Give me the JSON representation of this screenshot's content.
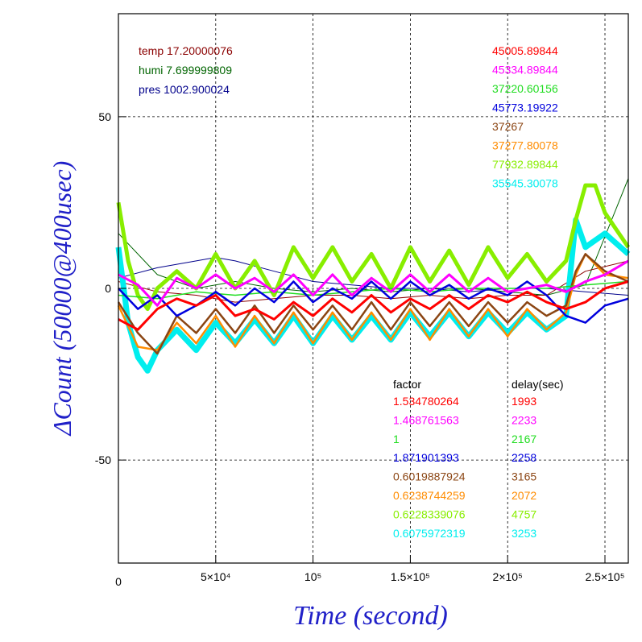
{
  "chart_data": {
    "type": "line",
    "xlabel": "Time (second)",
    "ylabel": "ΔCount (50000@400usec)",
    "xlim": [
      0,
      262000
    ],
    "ylim": [
      -80,
      80
    ],
    "grid": true,
    "x_ticks": [
      {
        "value": 0,
        "label": "0"
      },
      {
        "value": 50000,
        "label": "5×10⁴"
      },
      {
        "value": 100000,
        "label": "10⁵"
      },
      {
        "value": 150000,
        "label": "1.5×10⁵"
      },
      {
        "value": 200000,
        "label": "2×10⁵"
      },
      {
        "value": 250000,
        "label": "2.5×10⁵"
      }
    ],
    "y_ticks": [
      {
        "value": 50,
        "label": "50"
      },
      {
        "value": 0,
        "label": "0"
      },
      {
        "value": -50,
        "label": "-50"
      }
    ],
    "env_legend": [
      {
        "label": "temp 17.20000076",
        "color": "#8b0000"
      },
      {
        "label": "humi 7.699999809",
        "color": "#006400"
      },
      {
        "label": "pres 1002.900024",
        "color": "#00008b"
      }
    ],
    "table_headers": {
      "factor": "factor",
      "delay": "delay(sec)"
    },
    "series": [
      {
        "mean": "45005.89844",
        "factor": "1.534780264",
        "delay": "1993",
        "color": "#ff0000",
        "x": [
          0,
          10000,
          20000,
          30000,
          40000,
          50000,
          60000,
          70000,
          80000,
          90000,
          100000,
          110000,
          120000,
          130000,
          140000,
          150000,
          160000,
          170000,
          180000,
          190000,
          200000,
          210000,
          220000,
          230000,
          240000,
          250000,
          262000
        ],
        "y": [
          -9,
          -12,
          -6,
          -3,
          -5,
          -2,
          -8,
          -6,
          -9,
          -4,
          -8,
          -3,
          -7,
          -2,
          -7,
          -3,
          -6,
          -2,
          -6,
          -2,
          -4,
          -1,
          -4,
          -6,
          -4,
          0,
          2
        ]
      },
      {
        "mean": "45334.89844",
        "factor": "1.468761563",
        "delay": "2233",
        "color": "#ff00ff",
        "x": [
          0,
          10000,
          20000,
          30000,
          40000,
          50000,
          60000,
          70000,
          80000,
          90000,
          100000,
          110000,
          120000,
          130000,
          140000,
          150000,
          160000,
          170000,
          180000,
          190000,
          200000,
          210000,
          220000,
          230000,
          240000,
          250000,
          262000
        ],
        "y": [
          4,
          1,
          -5,
          3,
          0,
          4,
          0,
          3,
          -1,
          4,
          -2,
          4,
          -2,
          3,
          -1,
          4,
          -1,
          4,
          -1,
          3,
          -1,
          0,
          1,
          -1,
          2,
          4,
          8
        ]
      },
      {
        "mean": "37220.60156",
        "factor": "1",
        "delay": "2167",
        "color": "#22dd22",
        "x": [
          0,
          20000,
          40000,
          60000,
          80000,
          100000,
          120000,
          140000,
          160000,
          180000,
          200000,
          220000,
          240000,
          262000
        ],
        "y": [
          -2,
          -3,
          -1,
          -2,
          -1,
          -2,
          -1,
          0,
          -1,
          0,
          0,
          0,
          1,
          2
        ]
      },
      {
        "mean": "45773.19922",
        "factor": "1.871901393",
        "delay": "2258",
        "color": "#0000dd",
        "x": [
          0,
          10000,
          20000,
          30000,
          40000,
          50000,
          60000,
          70000,
          80000,
          90000,
          100000,
          110000,
          120000,
          130000,
          140000,
          150000,
          160000,
          170000,
          180000,
          190000,
          200000,
          210000,
          220000,
          230000,
          240000,
          250000,
          262000
        ],
        "y": [
          0,
          -6,
          -2,
          -8,
          -5,
          -1,
          -5,
          0,
          -4,
          2,
          -4,
          0,
          -3,
          2,
          -3,
          2,
          -2,
          1,
          -3,
          0,
          -2,
          2,
          -2,
          -8,
          -10,
          -5,
          -3
        ]
      },
      {
        "mean": "37267",
        "factor": "0.6019887924",
        "delay": "3165",
        "color": "#8b4513",
        "x": [
          0,
          10000,
          20000,
          30000,
          40000,
          50000,
          60000,
          70000,
          80000,
          90000,
          100000,
          110000,
          120000,
          130000,
          140000,
          150000,
          160000,
          170000,
          180000,
          190000,
          200000,
          210000,
          220000,
          230000,
          235000,
          240000,
          250000,
          262000
        ],
        "y": [
          -4,
          -13,
          -19,
          -8,
          -13,
          -6,
          -13,
          -5,
          -13,
          -5,
          -12,
          -5,
          -12,
          -4,
          -12,
          -4,
          -11,
          -4,
          -11,
          -4,
          -10,
          -4,
          -8,
          -5,
          5,
          10,
          5,
          2
        ]
      },
      {
        "mean": "37277.80078",
        "factor": "0.6238744259",
        "delay": "2072",
        "color": "#ff8c00",
        "x": [
          0,
          10000,
          20000,
          30000,
          40000,
          50000,
          60000,
          70000,
          80000,
          90000,
          100000,
          110000,
          120000,
          130000,
          140000,
          150000,
          160000,
          170000,
          180000,
          190000,
          200000,
          210000,
          220000,
          230000,
          235000,
          240000,
          250000,
          262000
        ],
        "y": [
          -5,
          -17,
          -18,
          -10,
          -16,
          -8,
          -17,
          -8,
          -16,
          -7,
          -16,
          -7,
          -15,
          -7,
          -15,
          -6,
          -15,
          -6,
          -14,
          -6,
          -14,
          -6,
          -12,
          -7,
          4,
          10,
          4,
          3
        ]
      },
      {
        "mean": "77932.89844",
        "factor": "0.6228339076",
        "delay": "4757",
        "color": "#88ee00",
        "x": [
          0,
          5000,
          10000,
          15000,
          20000,
          30000,
          40000,
          50000,
          60000,
          70000,
          80000,
          90000,
          100000,
          110000,
          120000,
          130000,
          140000,
          150000,
          160000,
          170000,
          180000,
          190000,
          200000,
          210000,
          220000,
          230000,
          235000,
          240000,
          245000,
          250000,
          262000
        ],
        "y": [
          25,
          8,
          -2,
          -6,
          0,
          5,
          0,
          10,
          0,
          8,
          -2,
          12,
          3,
          12,
          2,
          10,
          0,
          12,
          2,
          11,
          1,
          12,
          3,
          10,
          2,
          8,
          20,
          30,
          30,
          22,
          12
        ]
      },
      {
        "mean": "35545.30078",
        "factor": "0.6075972319",
        "delay": "3253",
        "color": "#00eeee",
        "x": [
          0,
          5000,
          10000,
          15000,
          20000,
          30000,
          40000,
          50000,
          60000,
          70000,
          80000,
          90000,
          100000,
          110000,
          120000,
          130000,
          140000,
          150000,
          160000,
          170000,
          180000,
          190000,
          200000,
          210000,
          220000,
          230000,
          235000,
          240000,
          250000,
          262000
        ],
        "y": [
          12,
          -10,
          -20,
          -24,
          -18,
          -12,
          -18,
          -10,
          -16,
          -9,
          -16,
          -8,
          -16,
          -8,
          -15,
          -8,
          -15,
          -7,
          -14,
          -7,
          -14,
          -7,
          -13,
          -7,
          -12,
          -8,
          20,
          12,
          16,
          10
        ]
      }
    ],
    "pressure_line": {
      "color": "#00008b",
      "x": [
        0,
        20000,
        40000,
        50000,
        60000,
        80000,
        100000,
        120000,
        140000,
        160000,
        180000,
        200000,
        220000,
        240000,
        262000
      ],
      "y": [
        3,
        6,
        8,
        9,
        8,
        5,
        2,
        1,
        0,
        0,
        -1,
        0,
        0,
        -1,
        -2
      ]
    },
    "humidity_line": {
      "color": "#006400",
      "x": [
        0,
        20000,
        40000,
        60000,
        80000,
        100000,
        120000,
        140000,
        160000,
        180000,
        200000,
        220000,
        240000,
        262000
      ],
      "y": [
        16,
        4,
        0,
        2,
        0,
        -1,
        0,
        -1,
        0,
        0,
        -1,
        -2,
        1,
        32
      ]
    },
    "temperature_line": {
      "color": "#8b0000",
      "x": [
        0,
        20000,
        40000,
        60000,
        80000,
        100000,
        120000,
        140000,
        160000,
        180000,
        200000,
        220000,
        240000,
        262000
      ],
      "y": [
        2,
        -1,
        -2,
        -4,
        -3,
        -2,
        -2,
        -3,
        -2,
        -3,
        -2,
        -2,
        5,
        8
      ]
    }
  }
}
